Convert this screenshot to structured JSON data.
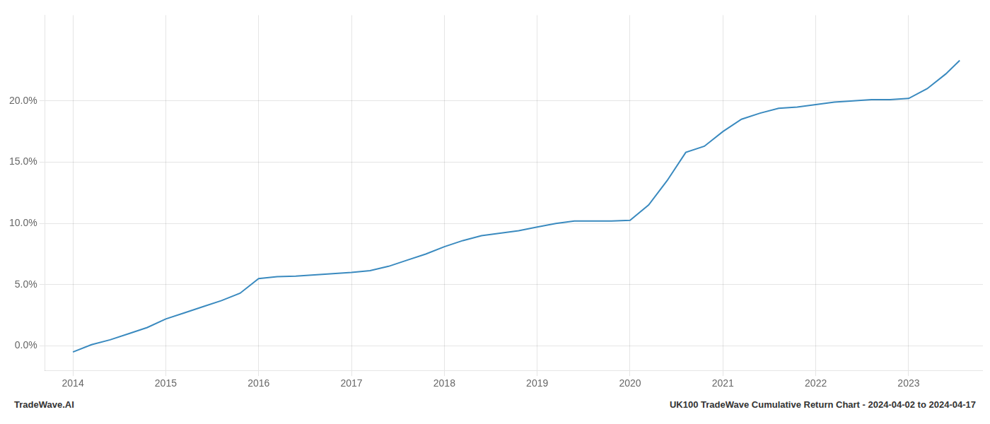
{
  "chart_data": {
    "type": "line",
    "annotations": [
      "TradeWave.AI",
      "UK100 TradeWave Cumulative Return Chart - 2024-04-02 to 2024-04-17"
    ],
    "x": [
      2014.0,
      2014.2,
      2014.4,
      2014.6,
      2014.8,
      2015.0,
      2015.2,
      2015.4,
      2015.6,
      2015.8,
      2016.0,
      2016.2,
      2016.4,
      2016.6,
      2016.8,
      2017.0,
      2017.2,
      2017.4,
      2017.6,
      2017.8,
      2018.0,
      2018.2,
      2018.4,
      2018.6,
      2018.8,
      2019.0,
      2019.2,
      2019.4,
      2019.6,
      2019.8,
      2020.0,
      2020.2,
      2020.4,
      2020.6,
      2020.8,
      2021.0,
      2021.2,
      2021.4,
      2021.6,
      2021.8,
      2022.0,
      2022.2,
      2022.4,
      2022.6,
      2022.8,
      2023.0,
      2023.2,
      2023.4,
      2023.55
    ],
    "values": [
      -0.5,
      0.1,
      0.5,
      1.0,
      1.5,
      2.2,
      2.7,
      3.2,
      3.7,
      4.3,
      5.5,
      5.65,
      5.7,
      5.8,
      5.9,
      6.0,
      6.15,
      6.5,
      7.0,
      7.5,
      8.1,
      8.6,
      9.0,
      9.2,
      9.4,
      9.7,
      10.0,
      10.2,
      10.2,
      10.2,
      10.25,
      11.5,
      13.5,
      15.8,
      16.3,
      17.5,
      18.5,
      19.0,
      19.4,
      19.5,
      19.7,
      19.9,
      20.0,
      20.1,
      20.1,
      20.2,
      21.0,
      22.2,
      23.3
    ],
    "color": "#3a8abf",
    "xlim": [
      2013.7,
      2023.8
    ],
    "ylim": [
      -2,
      27
    ],
    "xticks": [
      2014,
      2015,
      2016,
      2017,
      2018,
      2019,
      2020,
      2021,
      2022,
      2023
    ],
    "yticks": [
      {
        "value": 0.0,
        "label": "0.0%"
      },
      {
        "value": 5.0,
        "label": "5.0%"
      },
      {
        "value": 10.0,
        "label": "10.0%"
      },
      {
        "value": 15.0,
        "label": "15.0%"
      },
      {
        "value": 20.0,
        "label": "20.0%"
      }
    ],
    "grid": true
  }
}
